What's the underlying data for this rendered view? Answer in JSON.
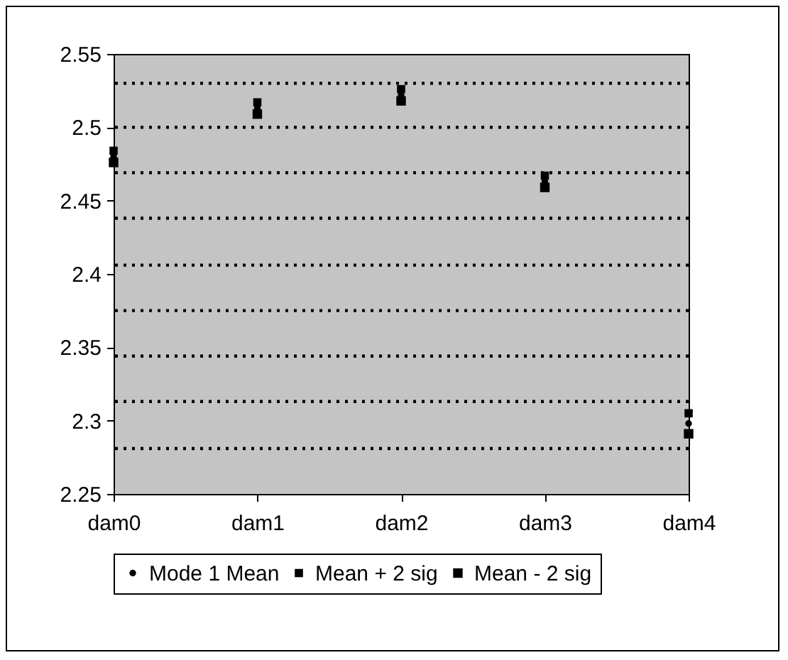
{
  "chart_data": {
    "type": "scatter",
    "categories": [
      "dam0",
      "dam1",
      "dam2",
      "dam3",
      "dam4"
    ],
    "series": [
      {
        "name": "Mode 1 Mean",
        "color": "#000000",
        "marker": "circle",
        "values": [
          2.48,
          2.513,
          2.522,
          2.463,
          2.298
        ]
      },
      {
        "name": "Mean + 2 sig",
        "color": "#000000",
        "marker": "square",
        "values": [
          2.484,
          2.517,
          2.526,
          2.467,
          2.305
        ]
      },
      {
        "name": "Mean - 2 sig",
        "color": "#000000",
        "marker": "square",
        "values": [
          2.476,
          2.509,
          2.518,
          2.459,
          2.291
        ]
      }
    ],
    "ylim": [
      2.25,
      2.55
    ],
    "yticks": [
      2.25,
      2.3,
      2.35,
      2.4,
      2.45,
      2.5,
      2.55
    ],
    "grid": false,
    "legend": "bottom",
    "ref_lines": [
      {
        "axis": "y",
        "value": 2.53,
        "color": "#000000",
        "line_style": "dotted"
      },
      {
        "axis": "y",
        "value": 2.5,
        "color": "#000000",
        "line_style": "dotted"
      },
      {
        "axis": "y",
        "value": 2.469,
        "color": "#000000",
        "line_style": "dotted"
      },
      {
        "axis": "y",
        "value": 2.438,
        "color": "#000000",
        "line_style": "dotted"
      },
      {
        "axis": "y",
        "value": 2.406,
        "color": "#000000",
        "line_style": "dotted"
      },
      {
        "axis": "y",
        "value": 2.375,
        "color": "#000000",
        "line_style": "dotted"
      },
      {
        "axis": "y",
        "value": 2.344,
        "color": "#000000",
        "line_style": "dotted"
      },
      {
        "axis": "y",
        "value": 2.313,
        "color": "#000000",
        "line_style": "dotted"
      },
      {
        "axis": "y",
        "value": 2.281,
        "color": "#000000",
        "line_style": "dotted"
      }
    ]
  }
}
